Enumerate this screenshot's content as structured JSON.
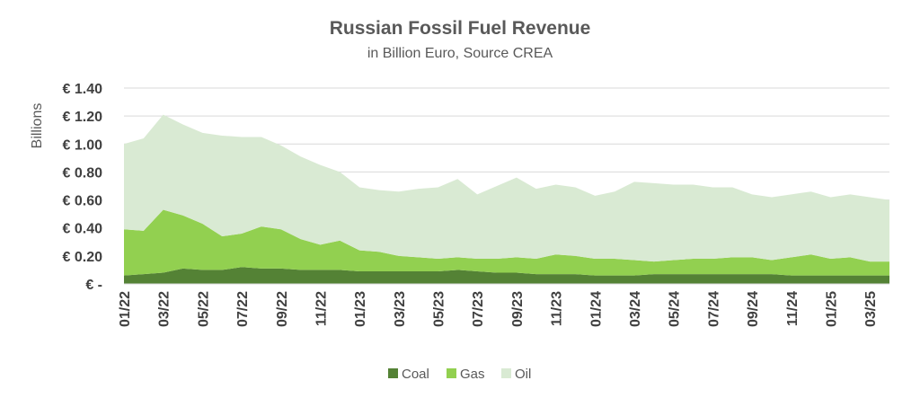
{
  "chart_data": {
    "type": "area",
    "stacked": true,
    "title": "Russian Fossil Fuel Revenue",
    "subtitle": "in Billion Euro, Source CREA",
    "ylabel": "Billions",
    "xlabel": "",
    "ylim": [
      0,
      1.4
    ],
    "yticks": [
      0,
      0.2,
      0.4,
      0.6,
      0.8,
      1.0,
      1.2,
      1.4
    ],
    "ytick_labels": [
      "€ -",
      "€ 0.20",
      "€ 0.40",
      "€ 0.60",
      "€ 0.80",
      "€ 1.00",
      "€ 1.20",
      "€ 1.40"
    ],
    "grid": true,
    "legend_position": "bottom",
    "x": [
      "01/22",
      "02/22",
      "03/22",
      "04/22",
      "05/22",
      "06/22",
      "07/22",
      "08/22",
      "09/22",
      "10/22",
      "11/22",
      "12/22",
      "01/23",
      "02/23",
      "03/23",
      "04/23",
      "05/23",
      "06/23",
      "07/23",
      "08/23",
      "09/23",
      "10/23",
      "11/23",
      "12/23",
      "01/24",
      "02/24",
      "03/24",
      "04/24",
      "05/24",
      "06/24",
      "07/24",
      "08/24",
      "09/24",
      "10/24",
      "11/24",
      "12/24",
      "01/25",
      "02/25",
      "03/25",
      "04/25"
    ],
    "x_tick_labels": [
      "01/22",
      "03/22",
      "05/22",
      "07/22",
      "09/22",
      "11/22",
      "01/23",
      "03/23",
      "05/23",
      "07/23",
      "09/23",
      "11/23",
      "01/24",
      "03/24",
      "05/24",
      "07/24",
      "09/24",
      "11/24",
      "01/25",
      "03/25"
    ],
    "series": [
      {
        "name": "Coal",
        "color": "#548235",
        "values": [
          0.06,
          0.07,
          0.08,
          0.11,
          0.1,
          0.1,
          0.12,
          0.11,
          0.11,
          0.1,
          0.1,
          0.1,
          0.09,
          0.09,
          0.09,
          0.09,
          0.09,
          0.1,
          0.09,
          0.08,
          0.08,
          0.07,
          0.07,
          0.07,
          0.06,
          0.06,
          0.06,
          0.07,
          0.07,
          0.07,
          0.07,
          0.07,
          0.07,
          0.07,
          0.06,
          0.06,
          0.06,
          0.06,
          0.06,
          0.06
        ]
      },
      {
        "name": "Gas",
        "color": "#92d050",
        "values": [
          0.33,
          0.31,
          0.45,
          0.38,
          0.33,
          0.24,
          0.24,
          0.3,
          0.28,
          0.22,
          0.18,
          0.21,
          0.15,
          0.14,
          0.11,
          0.1,
          0.09,
          0.09,
          0.09,
          0.1,
          0.11,
          0.11,
          0.14,
          0.13,
          0.12,
          0.12,
          0.11,
          0.09,
          0.1,
          0.11,
          0.11,
          0.12,
          0.12,
          0.1,
          0.13,
          0.15,
          0.12,
          0.13,
          0.1,
          0.1
        ]
      },
      {
        "name": "Oil",
        "color": "#d9ead3",
        "values": [
          0.61,
          0.66,
          0.68,
          0.65,
          0.65,
          0.72,
          0.69,
          0.64,
          0.6,
          0.59,
          0.57,
          0.49,
          0.45,
          0.44,
          0.46,
          0.49,
          0.51,
          0.56,
          0.46,
          0.52,
          0.57,
          0.5,
          0.5,
          0.49,
          0.45,
          0.48,
          0.56,
          0.56,
          0.54,
          0.53,
          0.51,
          0.5,
          0.45,
          0.45,
          0.45,
          0.45,
          0.44,
          0.45,
          0.46,
          0.44
        ]
      }
    ]
  }
}
